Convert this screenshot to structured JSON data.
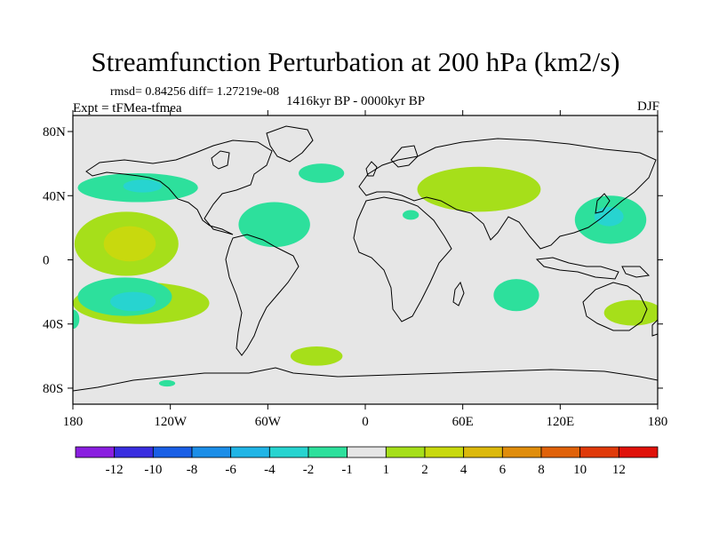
{
  "chart_data": {
    "type": "contour-map",
    "title": "Streamfunction Perturbation at 200 hPa (km2/s)",
    "stats_label": "rmsd= 0.84256 diff= 1.27219e-08",
    "experiment_label": "Expt = tFMea-tfmea",
    "period_label": "1416kyr BP - 0000kyr BP",
    "season_label": "DJF",
    "x_ticks": [
      {
        "value": -180,
        "label": "180"
      },
      {
        "value": -120,
        "label": "120W"
      },
      {
        "value": -60,
        "label": "60W"
      },
      {
        "value": 0,
        "label": "0"
      },
      {
        "value": 60,
        "label": "60E"
      },
      {
        "value": 120,
        "label": "120E"
      },
      {
        "value": 180,
        "label": "180"
      }
    ],
    "y_ticks": [
      {
        "value": 80,
        "label": "80N"
      },
      {
        "value": 40,
        "label": "40N"
      },
      {
        "value": 0,
        "label": "0"
      },
      {
        "value": -40,
        "label": "40S"
      },
      {
        "value": -80,
        "label": "80S"
      }
    ],
    "xlim": [
      -180,
      180
    ],
    "ylim": [
      -90,
      90
    ],
    "colorbar": {
      "colors": [
        "#8a1fe0",
        "#3a2ee0",
        "#1a5fe6",
        "#1c8ee8",
        "#21b5e6",
        "#27d4d0",
        "#2de09c",
        "#e6e6e6",
        "#a6df1a",
        "#c8d90e",
        "#dcb90c",
        "#e08d0c",
        "#e0620a",
        "#e03a0a",
        "#e0120a"
      ],
      "labels": [
        "-12",
        "-10",
        "-8",
        "-6",
        "-4",
        "-2",
        "-1",
        "1",
        "2",
        "4",
        "6",
        "8",
        "10",
        "12"
      ]
    },
    "anomaly_regions": [
      {
        "name": "north-pacific-east",
        "level": "-1",
        "color": "#2de09c",
        "center": [
          -140,
          45
        ],
        "rx": 37,
        "ry": 9
      },
      {
        "name": "north-pacific-east-core",
        "level": "-2",
        "color": "#27d4d0",
        "center": [
          -137,
          46
        ],
        "rx": 12,
        "ry": 4
      },
      {
        "name": "north-atlantic",
        "level": "-1",
        "color": "#2de09c",
        "center": [
          -27,
          54
        ],
        "rx": 14,
        "ry": 6
      },
      {
        "name": "caribbean",
        "level": "-1",
        "color": "#2de09c",
        "center": [
          -56,
          22
        ],
        "rx": 22,
        "ry": 14
      },
      {
        "name": "tropical-east-pacific",
        "level": "2",
        "color": "#a6df1a",
        "center": [
          -147,
          10
        ],
        "rx": 32,
        "ry": 20
      },
      {
        "name": "tropical-east-pacific-core",
        "level": "4",
        "color": "#c8d90e",
        "center": [
          -145,
          10
        ],
        "rx": 16,
        "ry": 11
      },
      {
        "name": "south-east-pacific",
        "level": "2",
        "color": "#a6df1a",
        "center": [
          -138,
          -27
        ],
        "rx": 42,
        "ry": 13
      },
      {
        "name": "south-pacific-anomaly",
        "level": "-1",
        "color": "#2de09c",
        "center": [
          -148,
          -23
        ],
        "rx": 29,
        "ry": 12
      },
      {
        "name": "south-pacific-core",
        "level": "-2",
        "color": "#27d4d0",
        "center": [
          -143,
          -26
        ],
        "rx": 14,
        "ry": 6
      },
      {
        "name": "south-pacific-west-edge",
        "level": "-1",
        "color": "#2de09c",
        "center": [
          -180,
          -37
        ],
        "rx": 4,
        "ry": 6
      },
      {
        "name": "south-atlantic",
        "level": "2",
        "color": "#a6df1a",
        "center": [
          -30,
          -60
        ],
        "rx": 16,
        "ry": 6
      },
      {
        "name": "southern-ocean-small",
        "level": "-1",
        "color": "#2de09c",
        "center": [
          -122,
          -77
        ],
        "rx": 5,
        "ry": 2
      },
      {
        "name": "north-africa-small",
        "level": "-1",
        "color": "#2de09c",
        "center": [
          28,
          28
        ],
        "rx": 5,
        "ry": 3
      },
      {
        "name": "eurasia",
        "level": "2",
        "color": "#a6df1a",
        "center": [
          70,
          44
        ],
        "rx": 38,
        "ry": 14
      },
      {
        "name": "indian-ocean",
        "level": "-1",
        "color": "#2de09c",
        "center": [
          93,
          -22
        ],
        "rx": 14,
        "ry": 10
      },
      {
        "name": "west-pacific",
        "level": "-1",
        "color": "#2de09c",
        "center": [
          151,
          25
        ],
        "rx": 22,
        "ry": 15
      },
      {
        "name": "west-pacific-core",
        "level": "-2",
        "color": "#27d4d0",
        "center": [
          150,
          27
        ],
        "rx": 9,
        "ry": 6
      },
      {
        "name": "east-australia",
        "level": "2",
        "color": "#a6df1a",
        "center": [
          165,
          -33
        ],
        "rx": 18,
        "ry": 8
      }
    ]
  }
}
